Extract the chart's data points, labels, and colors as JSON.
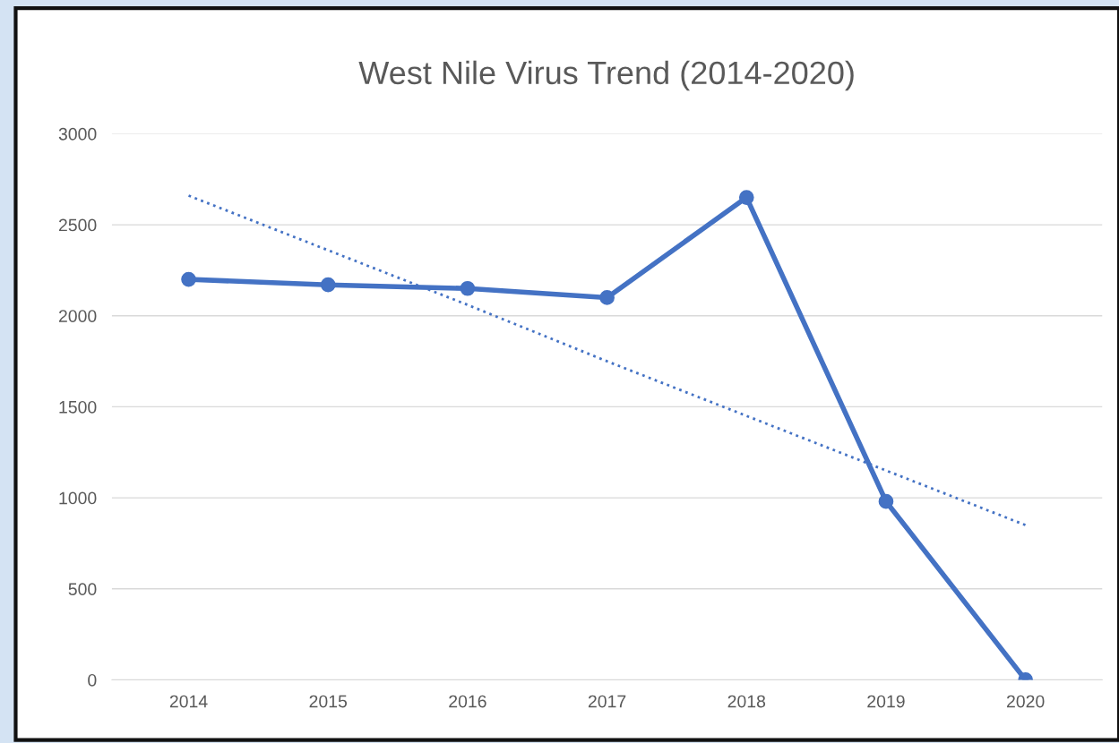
{
  "chart_data": {
    "type": "line",
    "title": "West Nile Virus Trend (2014-2020)",
    "categories": [
      "2014",
      "2015",
      "2016",
      "2017",
      "2018",
      "2019",
      "2020"
    ],
    "series": [
      {
        "color": "#4472c4",
        "values": [
          2200,
          2170,
          2150,
          2100,
          2650,
          980,
          0
        ],
        "marker": "circle",
        "line_style": "solid"
      },
      {
        "color": "#4472c4",
        "values": [
          2660,
          2360,
          2060,
          1750,
          1450,
          1150,
          850
        ],
        "marker": "none",
        "line_style": "dotted"
      }
    ],
    "ylim": [
      0,
      3000
    ],
    "yticks": [
      0,
      500,
      1000,
      1500,
      2000,
      2500,
      3000
    ],
    "grid": "y"
  }
}
